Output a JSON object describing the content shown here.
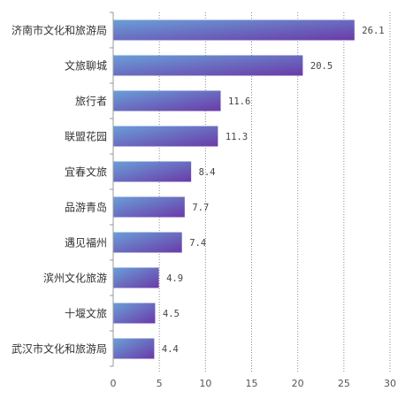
{
  "chart_data": {
    "type": "bar",
    "orientation": "horizontal",
    "categories": [
      "济南市文化和旅游局",
      "文旅聊城",
      "旅行者",
      "联盟花园",
      "宜春文旅",
      "品游青岛",
      "遇见福州",
      "滨州文化旅游",
      "十堰文旅",
      "武汉市文化和旅游局"
    ],
    "values": [
      26.1,
      20.5,
      11.6,
      11.3,
      8.4,
      7.7,
      7.4,
      4.9,
      4.5,
      4.4
    ],
    "value_labels": [
      "26.1",
      "20.5",
      "11.6",
      "11.3",
      "8.4",
      "7.7",
      "7.4",
      "4.9",
      "4.5",
      "4.4"
    ],
    "xlim": [
      0,
      30
    ],
    "x_ticks": [
      0,
      5,
      10,
      15,
      20,
      25,
      30
    ],
    "x_tick_labels": [
      "0",
      "5",
      "10",
      "15",
      "20",
      "25",
      "30"
    ],
    "grid": "vertical dotted",
    "legend": "none",
    "colors": {
      "bar_start": "#6a9fd8",
      "bar_end": "#6a3aa8",
      "grid": "#8a8a8a",
      "axis": "#999999"
    }
  }
}
